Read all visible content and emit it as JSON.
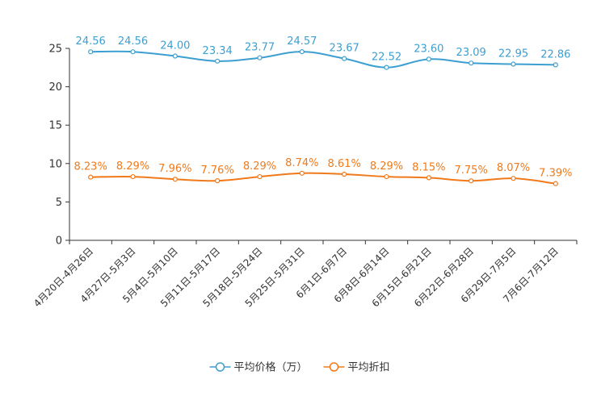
{
  "chart_data": {
    "type": "line",
    "categories": [
      "4月20日-4月26日",
      "4月27日-5月3日",
      "5月4日-5月10日",
      "5月11日-5月17日",
      "5月18日-5月24日",
      "5月25日-5月31日",
      "6月1日-6月7日",
      "6月8日-6月14日",
      "6月15日-6月21日",
      "6月22日-6月28日",
      "6月29日-7月5日",
      "7月6日-7月12日"
    ],
    "series": [
      {
        "name": "平均价格（万）",
        "color": "#3d9fd1",
        "values": [
          24.56,
          24.56,
          24.0,
          23.34,
          23.77,
          24.57,
          23.67,
          22.52,
          23.6,
          23.09,
          22.95,
          22.86
        ],
        "labels": [
          "24.56",
          "24.56",
          "24.00",
          "23.34",
          "23.77",
          "24.57",
          "23.67",
          "22.52",
          "23.60",
          "23.09",
          "22.95",
          "22.86"
        ]
      },
      {
        "name": "平均折扣",
        "color": "#f07a1b",
        "values": [
          8.23,
          8.29,
          7.96,
          7.76,
          8.29,
          8.74,
          8.61,
          8.29,
          8.15,
          7.75,
          8.07,
          7.39
        ],
        "labels": [
          "8.23%",
          "8.29%",
          "7.96%",
          "7.76%",
          "8.29%",
          "8.74%",
          "8.61%",
          "8.29%",
          "8.15%",
          "7.75%",
          "8.07%",
          "7.39%"
        ]
      }
    ],
    "ylim": [
      0,
      25
    ],
    "yticks": [
      0,
      5,
      10,
      15,
      20,
      25
    ],
    "yticklabels": [
      "0",
      "5",
      "10",
      "15",
      "20",
      "25"
    ],
    "legend_position": "bottom-center",
    "grid": false
  }
}
